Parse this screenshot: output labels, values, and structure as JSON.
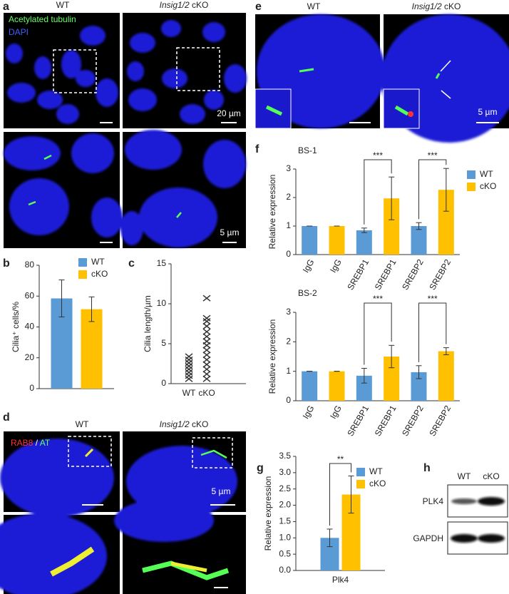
{
  "chart_data": [
    {
      "type": "bar",
      "ylabel": "Cilia⁺ cells/%",
      "ylim": [
        0,
        80
      ],
      "yticks": [
        0,
        20,
        40,
        60,
        80
      ],
      "series": [
        {
          "name": "WT",
          "color": "#5b9bd5",
          "values": [
            58.5
          ],
          "errors": [
            12
          ]
        },
        {
          "name": "cKO",
          "color": "#ffc000",
          "values": [
            51.5
          ],
          "errors": [
            8
          ]
        }
      ]
    },
    {
      "type": "scatter",
      "ylabel": "Cilia length/µm",
      "ylim": [
        0,
        15
      ],
      "yticks": [
        0,
        5,
        10,
        15
      ],
      "color": "#333333",
      "categories": [
        "WT",
        "cKO"
      ],
      "values": [
        [
          3.4,
          3.0,
          2.6,
          2.2,
          1.8,
          1.4,
          1.0,
          0.6
        ],
        [
          10.7,
          8.2,
          7.8,
          7.2,
          6.5,
          5.9,
          5.3,
          4.8,
          4.2,
          3.6,
          3.0,
          2.4,
          1.8,
          1.2,
          0.6
        ]
      ]
    },
    {
      "type": "bar",
      "title": "BS-1",
      "ylabel": "Relative expression",
      "ylim": [
        0,
        3
      ],
      "yticks": [
        0,
        1,
        2,
        3
      ],
      "categories": [
        "IgG",
        "IgG",
        "SREBP1",
        "SREBP1",
        "SREBP2",
        "SREBP2"
      ],
      "annotations": [
        "***",
        "***"
      ],
      "series": [
        {
          "name": "WT",
          "color": "#5b9bd5",
          "values": [
            1.0,
            null,
            0.85,
            null,
            1.0,
            null
          ],
          "errors": [
            0,
            null,
            0.08,
            null,
            0.12,
            null
          ]
        },
        {
          "name": "cKO",
          "color": "#ffc000",
          "values": [
            null,
            1.0,
            null,
            1.97,
            null,
            2.27
          ],
          "errors": [
            null,
            0,
            null,
            0.75,
            null,
            0.75
          ]
        }
      ]
    },
    {
      "type": "bar",
      "title": "BS-2",
      "ylabel": "Relative expression",
      "ylim": [
        0,
        3
      ],
      "yticks": [
        0,
        1,
        2,
        3
      ],
      "categories": [
        "IgG",
        "IgG",
        "SREBP1",
        "SREBP1",
        "SREBP2",
        "SREBP2"
      ],
      "annotations": [
        "***",
        "***"
      ],
      "series": [
        {
          "color": "#5b9bd5",
          "values": [
            1.0,
            null,
            0.85,
            null,
            0.97,
            null
          ],
          "errors": [
            0,
            null,
            0.25,
            null,
            0.22,
            null
          ]
        },
        {
          "color": "#ffc000",
          "values": [
            null,
            1.0,
            null,
            1.5,
            null,
            1.68
          ],
          "errors": [
            null,
            0,
            null,
            0.38,
            null,
            0.12
          ]
        }
      ]
    },
    {
      "type": "bar",
      "ylabel": "Relative expression",
      "ylim": [
        0,
        3.5
      ],
      "yticks": [
        {
          "value": 0,
          "label": "0.0"
        },
        {
          "value": 0.5,
          "label": "0.5"
        },
        {
          "value": 1,
          "label": "1.0"
        },
        {
          "value": 1.5,
          "label": "1.5"
        },
        {
          "value": 2,
          "label": "2.0"
        },
        {
          "value": 2.5,
          "label": "2.5"
        },
        {
          "value": 3,
          "label": "3.0"
        },
        {
          "value": 3.5,
          "label": "3.5"
        }
      ],
      "categories": [
        "Plk4"
      ],
      "annotations": [
        "**"
      ],
      "series": [
        {
          "name": "WT",
          "color": "#5b9bd5",
          "values": [
            1.0
          ],
          "errors": [
            0.27
          ]
        },
        {
          "name": "cKO",
          "color": "#ffc000",
          "values": [
            2.33
          ],
          "errors": [
            0.57
          ]
        }
      ]
    }
  ],
  "panel_labels": [
    "a",
    "b",
    "c",
    "d",
    "e",
    "f",
    "g",
    "h"
  ],
  "panel_a": {
    "wt": "WT",
    "cko_gene": "Insig1/2",
    "cko": "cKO",
    "stain1": "Acetylated tubulin",
    "stain2": "DAPI",
    "scale1": "20 µm",
    "scale2": "5 µm"
  },
  "panel_d": {
    "wt": "WT",
    "cko_gene": "Insig1/2",
    "cko": "cKO",
    "stain1": "RAB8",
    "sep": " / ",
    "stain2": "AT",
    "scale": "5 µm"
  },
  "panel_e": {
    "wt": "WT",
    "cko_gene": "Insig1/2",
    "cko": "cKO",
    "scale": "5 µm"
  },
  "panel_h": {
    "wt": "WT",
    "cko": "cKO",
    "band1": "PLK4",
    "band2": "GAPDH"
  }
}
